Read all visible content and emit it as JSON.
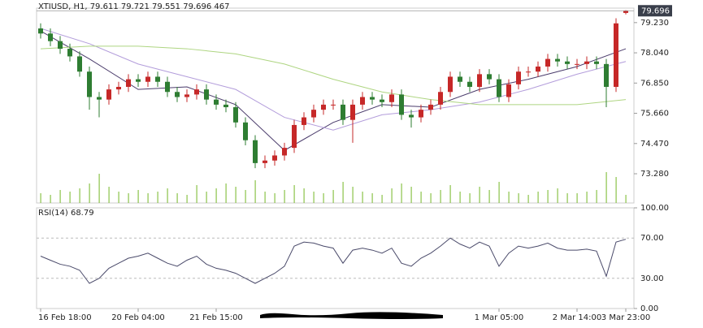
{
  "chart_data": [
    {
      "type": "candlestick",
      "title": "XTIUSD, H1, 79.611 79.721 79.551 79.696 467",
      "categories": [
        "16 Feb 18:00",
        null,
        null,
        null,
        null,
        null,
        null,
        null,
        null,
        null,
        "20 Feb 04:00",
        null,
        null,
        null,
        null,
        null,
        null,
        null,
        "21 Feb 15:00",
        null,
        null,
        null,
        null,
        null,
        null,
        null,
        null,
        null,
        null,
        null,
        null,
        null,
        null,
        null,
        null,
        null,
        null,
        null,
        null,
        null,
        null,
        null,
        null,
        null,
        null,
        null,
        null,
        "1 Mar 05:00",
        null,
        null,
        null,
        null,
        null,
        null,
        null,
        "2 Mar 14:00",
        null,
        null,
        null,
        null,
        "3 Mar 23:00"
      ],
      "open": [
        79.0,
        78.8,
        78.5,
        78.2,
        77.9,
        77.3,
        76.3,
        76.2,
        76.6,
        76.7,
        77.0,
        76.9,
        77.1,
        76.9,
        76.5,
        76.3,
        76.4,
        76.6,
        76.2,
        76.0,
        75.9,
        75.3,
        74.6,
        73.7,
        73.8,
        74.0,
        74.3,
        75.2,
        75.5,
        75.8,
        76.0,
        76.0,
        75.4,
        76.0,
        76.3,
        76.2,
        76.1,
        76.4,
        75.6,
        75.5,
        75.8,
        76.0,
        76.5,
        77.1,
        76.9,
        76.7,
        77.2,
        77.0,
        76.3,
        76.8,
        77.3,
        77.3,
        77.5,
        77.8,
        77.7,
        77.6,
        77.6,
        77.7,
        77.6,
        76.7,
        79.611
      ],
      "high": [
        79.2,
        79.0,
        78.7,
        78.4,
        78.1,
        77.5,
        76.5,
        76.8,
        76.9,
        77.2,
        77.2,
        77.3,
        77.3,
        77.1,
        76.7,
        76.6,
        76.8,
        76.8,
        76.4,
        76.2,
        76.1,
        75.5,
        74.8,
        74.0,
        74.2,
        74.5,
        75.4,
        75.7,
        76.0,
        76.2,
        76.2,
        76.2,
        76.2,
        76.5,
        76.5,
        76.4,
        76.6,
        76.6,
        75.8,
        76.0,
        76.2,
        76.7,
        77.3,
        77.3,
        77.1,
        77.4,
        77.4,
        77.2,
        77.0,
        77.5,
        77.5,
        77.7,
        78.0,
        78.0,
        77.9,
        77.8,
        77.9,
        77.9,
        77.8,
        79.4,
        79.721
      ],
      "low": [
        78.6,
        78.3,
        78.0,
        77.7,
        77.1,
        75.8,
        75.5,
        76.0,
        76.4,
        76.5,
        76.7,
        76.7,
        76.7,
        76.3,
        76.1,
        76.1,
        76.2,
        76.0,
        75.8,
        75.7,
        75.1,
        74.4,
        73.5,
        73.5,
        73.6,
        73.8,
        74.1,
        75.0,
        75.3,
        75.6,
        75.8,
        75.2,
        74.5,
        75.8,
        76.0,
        75.9,
        75.9,
        75.4,
        75.1,
        75.3,
        75.6,
        75.8,
        76.3,
        76.7,
        76.5,
        76.5,
        76.8,
        76.1,
        76.1,
        76.6,
        77.1,
        77.1,
        77.3,
        77.5,
        77.4,
        77.4,
        77.4,
        77.4,
        75.9,
        76.5,
        79.551
      ],
      "close": [
        78.8,
        78.5,
        78.2,
        77.9,
        77.3,
        76.3,
        76.2,
        76.6,
        76.7,
        77.0,
        76.9,
        77.1,
        76.9,
        76.5,
        76.3,
        76.4,
        76.6,
        76.2,
        76.0,
        75.9,
        75.3,
        74.6,
        73.7,
        73.8,
        74.0,
        74.3,
        75.2,
        75.5,
        75.8,
        76.0,
        76.0,
        75.4,
        76.0,
        76.3,
        76.2,
        76.1,
        76.4,
        75.6,
        75.5,
        75.8,
        76.0,
        76.5,
        77.1,
        76.9,
        76.7,
        77.2,
        77.0,
        76.3,
        76.8,
        77.3,
        77.3,
        77.5,
        77.8,
        77.7,
        77.6,
        77.6,
        77.7,
        77.6,
        76.7,
        79.2,
        79.696
      ],
      "volume": [
        300,
        250,
        400,
        350,
        450,
        600,
        900,
        500,
        350,
        300,
        400,
        300,
        350,
        450,
        300,
        250,
        550,
        350,
        450,
        600,
        500,
        400,
        700,
        350,
        300,
        400,
        550,
        450,
        350,
        300,
        400,
        650,
        500,
        350,
        300,
        250,
        450,
        600,
        500,
        350,
        300,
        400,
        550,
        350,
        300,
        500,
        400,
        650,
        350,
        300,
        250,
        350,
        400,
        450,
        300,
        300,
        350,
        400,
        950,
        800,
        250
      ],
      "volume_lim": [
        0,
        1000
      ],
      "volume_color": "#8bc34a",
      "up_color": "#c62828",
      "down_color": "#2e7d32",
      "moving_averages": [
        {
          "color": "#4a3b6b",
          "x": [
            0,
            5,
            10,
            15,
            20,
            25,
            30,
            35,
            40,
            45,
            50,
            55,
            60
          ],
          "values": [
            78.9,
            77.8,
            76.6,
            76.7,
            76.0,
            74.2,
            75.3,
            76.0,
            75.9,
            76.6,
            77.0,
            77.5,
            78.2
          ]
        },
        {
          "color": "#b39ddb",
          "x": [
            0,
            5,
            10,
            15,
            20,
            25,
            30,
            35,
            40,
            45,
            50,
            55,
            60
          ],
          "values": [
            79.0,
            78.4,
            77.6,
            77.1,
            76.6,
            75.5,
            75.0,
            75.6,
            75.8,
            76.1,
            76.6,
            77.2,
            77.7
          ]
        },
        {
          "color": "#aed581",
          "x": [
            0,
            5,
            10,
            15,
            20,
            25,
            30,
            35,
            40,
            45,
            50,
            55,
            60
          ],
          "values": [
            78.2,
            78.3,
            78.3,
            78.2,
            78.0,
            77.6,
            77.0,
            76.5,
            76.2,
            76.0,
            76.0,
            76.0,
            76.2
          ]
        }
      ],
      "ylim": [
        72.13,
        79.8
      ],
      "yticks": [
        {
          "value": 73.28,
          "label": "73.280"
        },
        {
          "value": 74.47,
          "label": "74.470"
        },
        {
          "value": 75.66,
          "label": "75.660"
        },
        {
          "value": 76.85,
          "label": "76.850"
        },
        {
          "value": 78.04,
          "label": "78.040"
        },
        {
          "value": 79.23,
          "label": "79.230"
        }
      ]
    },
    {
      "type": "line",
      "title": "RSI(14) 68.79",
      "color": "#4a4a6a",
      "values": [
        52,
        48,
        44,
        42,
        38,
        25,
        30,
        40,
        45,
        50,
        52,
        55,
        50,
        45,
        42,
        48,
        52,
        44,
        40,
        38,
        35,
        30,
        25,
        30,
        35,
        42,
        62,
        66,
        65,
        62,
        60,
        45,
        58,
        60,
        58,
        55,
        60,
        45,
        42,
        50,
        55,
        62,
        70,
        64,
        60,
        66,
        62,
        42,
        55,
        62,
        60,
        62,
        65,
        60,
        58,
        58,
        59,
        57,
        32,
        66,
        68.79
      ],
      "ylim": [
        0,
        100
      ],
      "yticks": [
        {
          "value": 0,
          "label": "0.00"
        },
        {
          "value": 30,
          "label": "30.00"
        },
        {
          "value": 70,
          "label": "70.00"
        },
        {
          "value": 100,
          "label": "100.00"
        }
      ]
    }
  ]
}
